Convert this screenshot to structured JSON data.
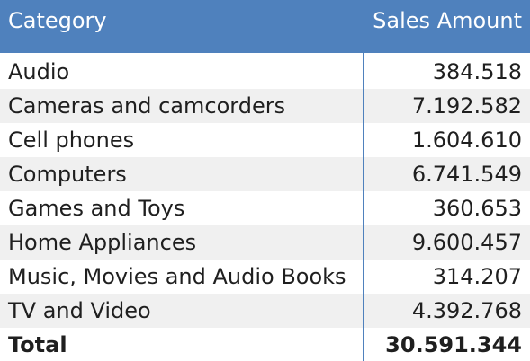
{
  "table": {
    "header": {
      "category_label": "Category",
      "sales_label": "Sales Amount"
    },
    "rows": [
      {
        "category": "Audio",
        "sales": "384.518"
      },
      {
        "category": "Cameras and camcorders",
        "sales": "7.192.582"
      },
      {
        "category": "Cell phones",
        "sales": "1.604.610"
      },
      {
        "category": "Computers",
        "sales": "6.741.549"
      },
      {
        "category": "Games and Toys",
        "sales": "360.653"
      },
      {
        "category": "Home Appliances",
        "sales": "9.600.457"
      },
      {
        "category": "Music, Movies and Audio Books",
        "sales": "314.207"
      },
      {
        "category": "TV and Video",
        "sales": "4.392.768"
      }
    ],
    "total": {
      "label": "Total",
      "sales": "30.591.344"
    }
  },
  "colors": {
    "header_background": "#4f81bd",
    "header_text": "#ffffff",
    "alternate_row": "#f0f0f0",
    "divider": "#4f81bd"
  }
}
